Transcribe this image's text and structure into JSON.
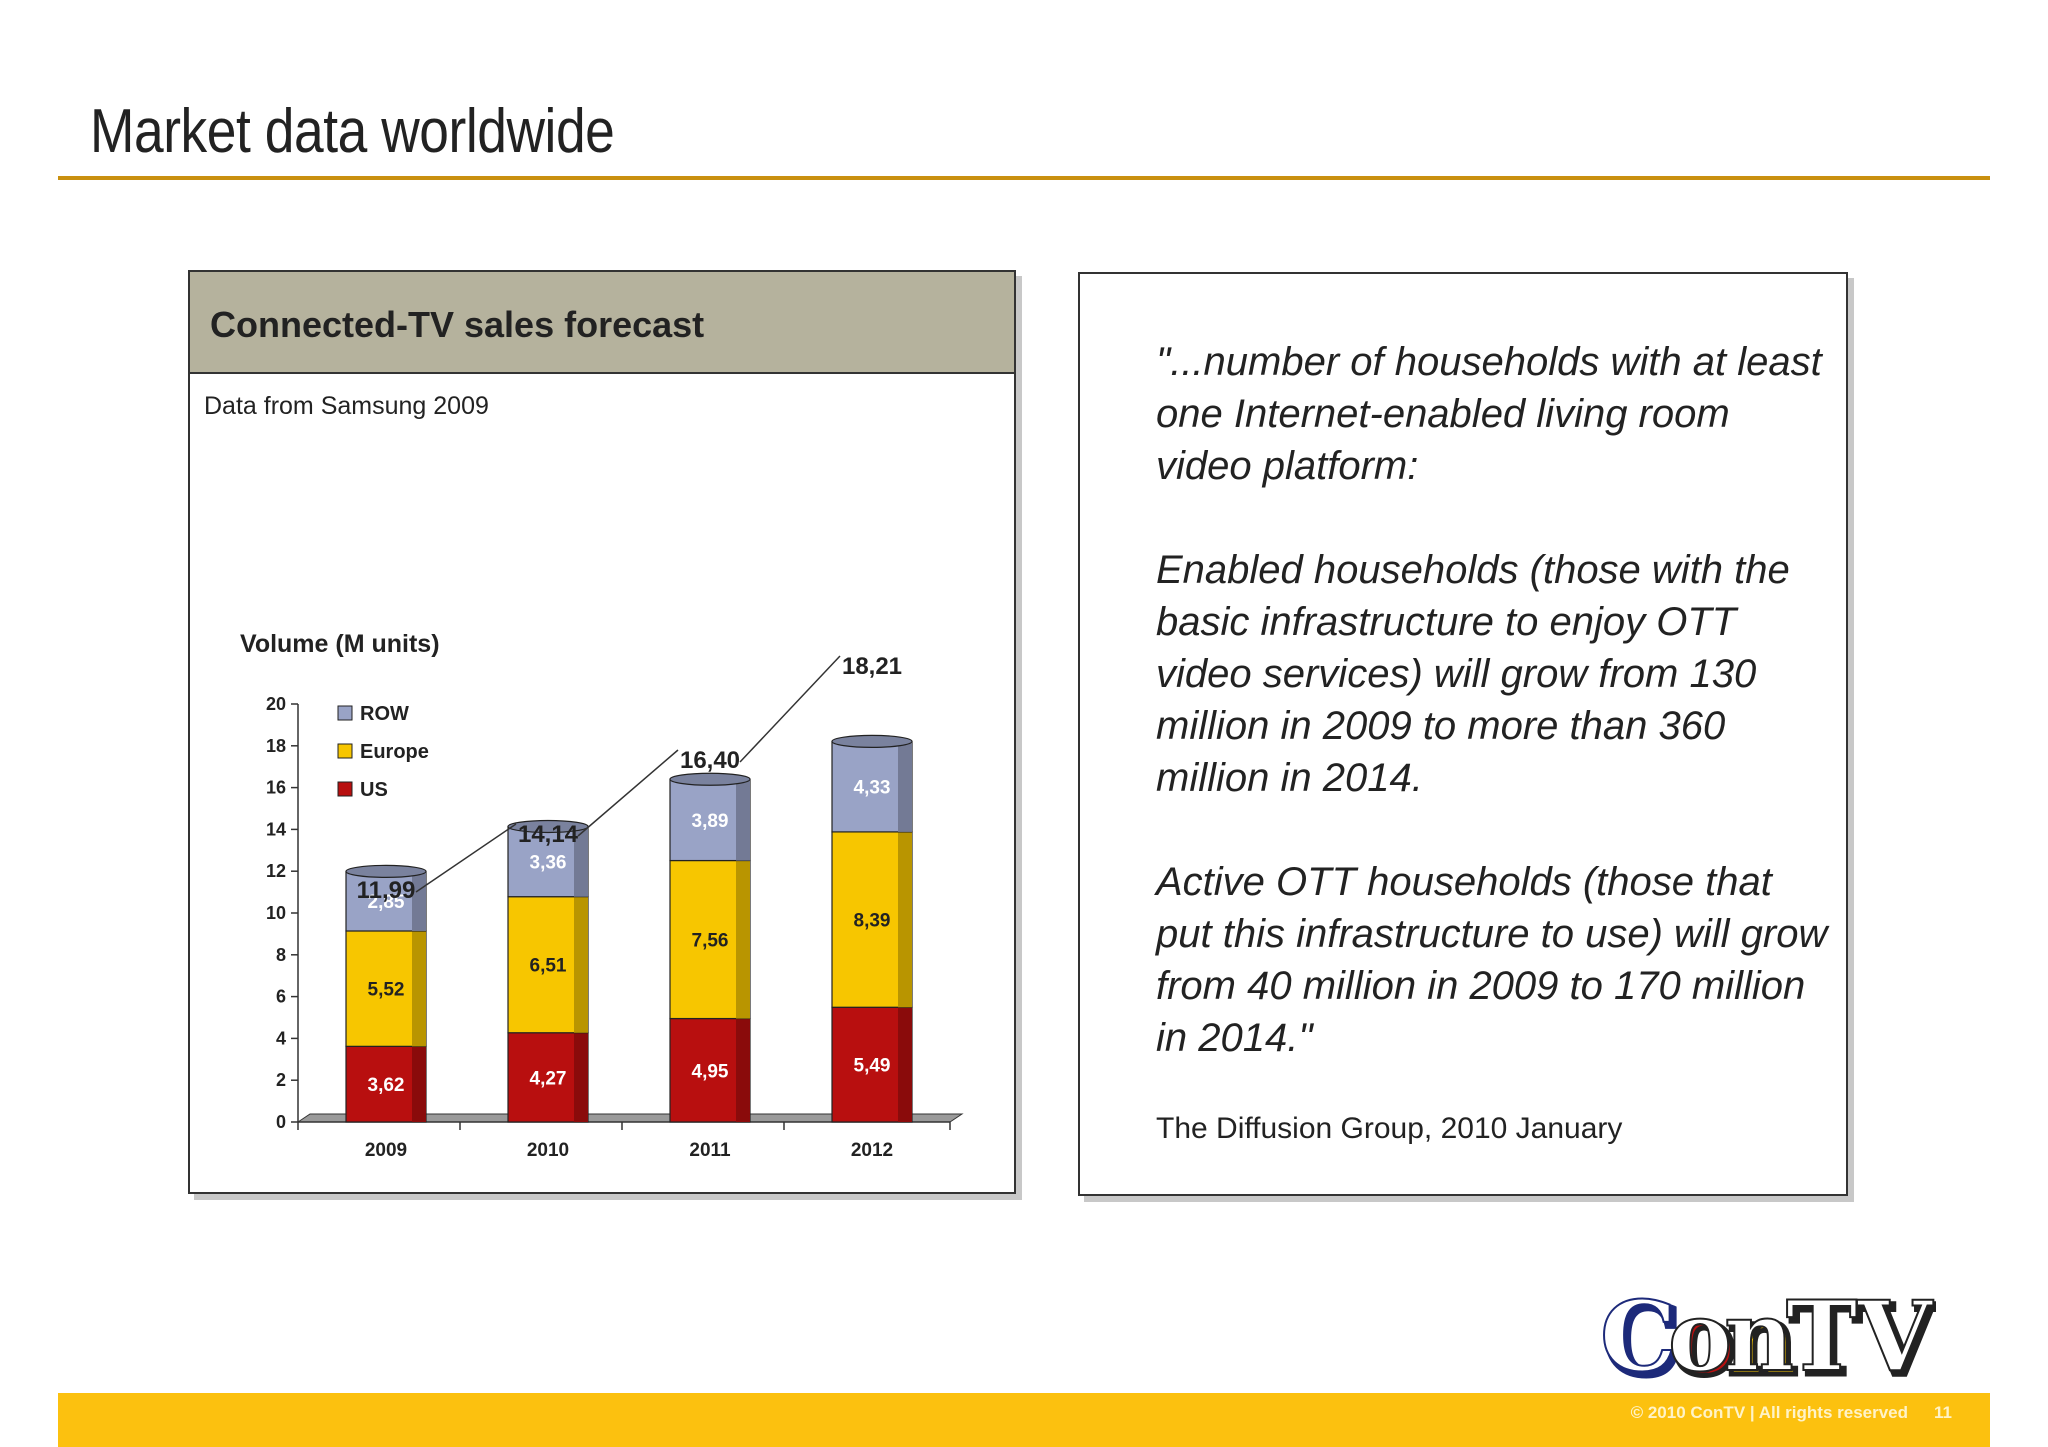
{
  "slide": {
    "title": "Market data worldwide",
    "footer_copyright": "© 2010 ConTV | All rights reserved",
    "page_number": "11",
    "logo_text": "ConTV"
  },
  "left_panel": {
    "header": "Connected-TV sales forecast",
    "source_note": "Data from Samsung 2009"
  },
  "right_panel": {
    "quote_paragraphs": [
      "\"...number of households with at least one Internet-enabled living room video platform:",
      "Enabled households (those with the basic infrastructure to enjoy OTT video services) will grow from 130 million in 2009 to more than 360 million in 2014.",
      "Active OTT households (those that put this infrastructure to use) will grow from 40 million in 2009 to 170 million in 2014.\""
    ],
    "attribution": "The Diffusion Group, 2010 January"
  },
  "colors": {
    "accent_rule": "#c9900f",
    "footer": "#fcc10f",
    "us": "#b80f0f",
    "europe": "#f7c600",
    "row": "#99a3c6"
  },
  "chart_data": {
    "type": "bar",
    "stacked": true,
    "ylabel": "Volume (M units)",
    "ylim": [
      0,
      20
    ],
    "yticks": [
      0,
      2,
      4,
      6,
      8,
      10,
      12,
      14,
      16,
      18,
      20
    ],
    "categories": [
      "2009",
      "2010",
      "2011",
      "2012"
    ],
    "series": [
      {
        "name": "US",
        "values": [
          3.62,
          4.27,
          4.95,
          5.49
        ],
        "labels": [
          "3,62",
          "4,27",
          "4,95",
          "5,49"
        ]
      },
      {
        "name": "Europe",
        "values": [
          5.52,
          6.51,
          7.56,
          8.39
        ],
        "labels": [
          "5,52",
          "6,51",
          "7,56",
          "8,39"
        ]
      },
      {
        "name": "ROW",
        "values": [
          2.85,
          3.36,
          3.89,
          4.33
        ],
        "labels": [
          "2,85",
          "3,36",
          "3,89",
          "4,33"
        ]
      }
    ],
    "totals": [
      11.99,
      14.14,
      16.4,
      18.21
    ],
    "total_labels": [
      "11,99",
      "14,14",
      "16,40",
      "18,21"
    ],
    "legend": [
      "ROW",
      "Europe",
      "US"
    ],
    "legend_position": "top-left"
  }
}
